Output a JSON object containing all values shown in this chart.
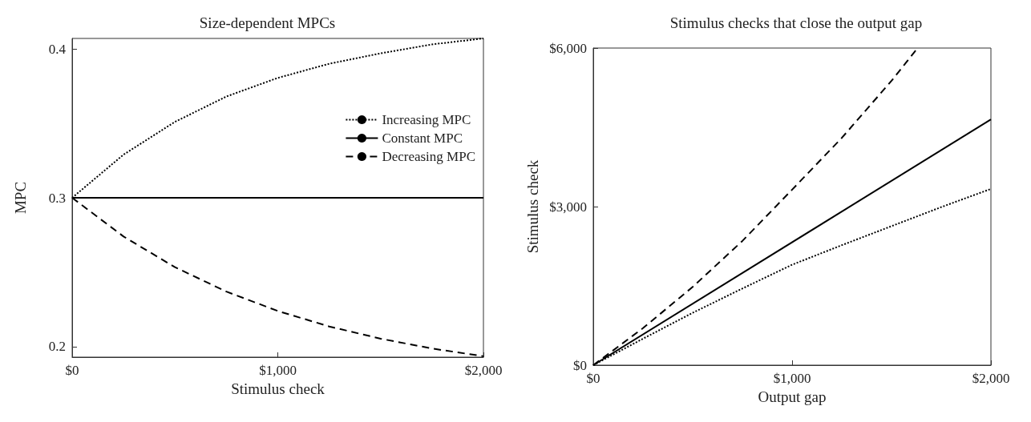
{
  "chart_data": [
    {
      "type": "line",
      "title": "Size-dependent MPCs",
      "xlabel": "Stimulus check",
      "ylabel": "MPC",
      "xlim": [
        0,
        2000
      ],
      "xticks": [
        {
          "value": 0,
          "label": "$0"
        },
        {
          "value": 1000,
          "label": "$1,000"
        },
        {
          "value": 2000,
          "label": "$2,000"
        }
      ],
      "ylim": [
        0.193,
        0.407
      ],
      "yticks": [
        0.2,
        0.3,
        0.4
      ],
      "grid": false,
      "legend": "right",
      "marker": "none",
      "series": [
        {
          "name": "Increasing MPC",
          "color": "#000000",
          "line_style": "dotted",
          "x": [
            0,
            250,
            500,
            750,
            1000,
            1250,
            1500,
            1750,
            2000
          ],
          "values": [
            0.3,
            0.329,
            0.351,
            0.368,
            0.3805,
            0.39,
            0.397,
            0.403,
            0.407
          ]
        },
        {
          "name": "Constant MPC",
          "color": "#000000",
          "line_style": "solid",
          "x": [
            0,
            2000
          ],
          "values": [
            0.3,
            0.3
          ]
        },
        {
          "name": "Decreasing MPC",
          "color": "#000000",
          "line_style": "dashed",
          "x": [
            0,
            250,
            500,
            750,
            1000,
            1250,
            1500,
            1750,
            2000
          ],
          "values": [
            0.3,
            0.274,
            0.2534,
            0.237,
            0.224,
            0.2136,
            0.2054,
            0.1988,
            0.1936
          ]
        }
      ]
    },
    {
      "type": "line",
      "title": "Stimulus checks that close the output gap",
      "xlabel": "Output gap",
      "ylabel": "Stimulus check",
      "xlim": [
        0,
        2000
      ],
      "xticks": [
        {
          "value": 0,
          "label": "$0"
        },
        {
          "value": 1000,
          "label": "$1,000"
        },
        {
          "value": 2000,
          "label": "$2,000"
        }
      ],
      "ylim": [
        0,
        6000
      ],
      "yticks": [
        {
          "value": 0,
          "label": "$0"
        },
        {
          "value": 3000,
          "label": "$3,000"
        },
        {
          "value": 6000,
          "label": "$6,000"
        }
      ],
      "grid": false,
      "legend": false,
      "marker": "none",
      "series": [
        {
          "color": "#000000",
          "line_style": "dotted",
          "x": [
            0,
            250,
            500,
            750,
            1000,
            1250,
            1500,
            1750,
            2000
          ],
          "values": [
            0,
            500,
            990,
            1450,
            1900,
            2270,
            2630,
            2990,
            3335
          ]
        },
        {
          "color": "#000000",
          "line_style": "solid",
          "x": [
            0,
            2000
          ],
          "values": [
            0,
            4650
          ]
        },
        {
          "color": "#000000",
          "line_style": "dashed",
          "x": [
            0,
            250,
            500,
            750,
            1000,
            1250,
            1500,
            1631
          ],
          "values": [
            0,
            700,
            1480,
            2350,
            3320,
            4300,
            5380,
            6000
          ]
        }
      ]
    }
  ]
}
